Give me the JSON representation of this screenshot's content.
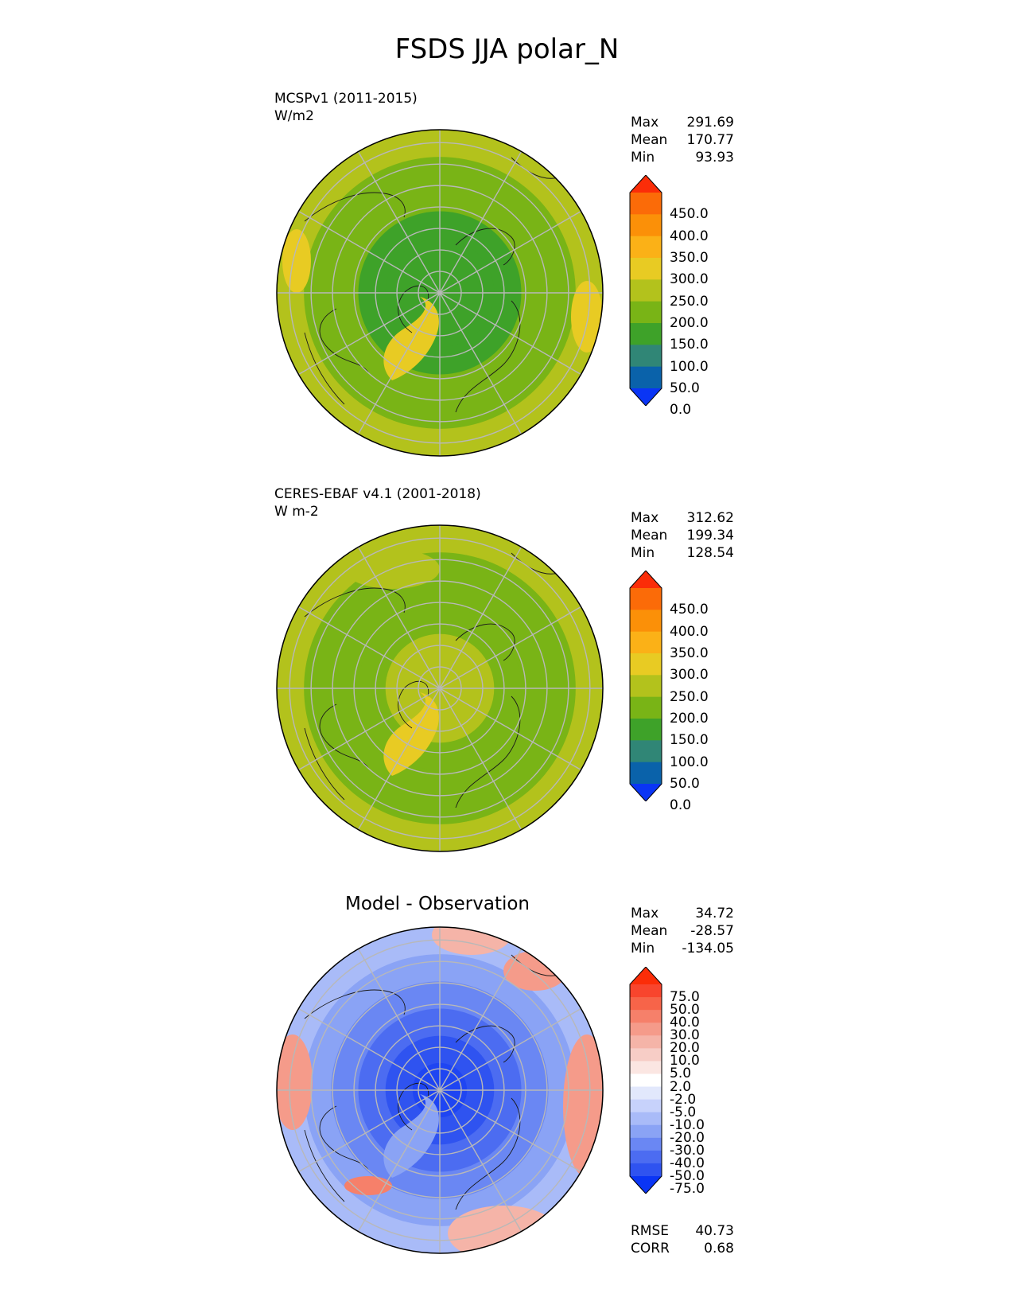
{
  "figure": {
    "title": "FSDS JJA polar_N"
  },
  "panels": [
    {
      "id": "model",
      "title_line1": "MCSPv1 (2011-2015)",
      "title_line2": "W/m2",
      "heading": "",
      "stats": {
        "max_label": "Max",
        "max": "291.69",
        "mean_label": "Mean",
        "mean": "170.77",
        "min_label": "Min",
        "min": "93.93"
      },
      "colorbar": {
        "labels": [
          "450.0",
          "400.0",
          "350.0",
          "300.0",
          "250.0",
          "200.0",
          "150.0",
          "100.0",
          "50.0",
          "0.0"
        ],
        "colors": [
          "#fb2d08",
          "#fb6b08",
          "#fb9008",
          "#fbb117",
          "#e8cb23",
          "#b3c21c",
          "#79b416",
          "#3ea229",
          "#308676",
          "#0a62aa",
          "#0a35f5"
        ]
      },
      "map": {
        "type": "north-polar-stereographic",
        "field": "FSDS",
        "pole_value_band": "100-150",
        "ring_levels": [
          "#3ea229",
          "#3ea229",
          "#3ea229",
          "#79b416",
          "#79b416",
          "#b3c21c"
        ]
      }
    },
    {
      "id": "obs",
      "title_line1": "CERES-EBAF v4.1 (2001-2018)",
      "title_line2": "W m-2",
      "heading": "",
      "stats": {
        "max_label": "Max",
        "max": "312.62",
        "mean_label": "Mean",
        "mean": "199.34",
        "min_label": "Min",
        "min": "128.54"
      },
      "colorbar": {
        "labels": [
          "450.0",
          "400.0",
          "350.0",
          "300.0",
          "250.0",
          "200.0",
          "150.0",
          "100.0",
          "50.0",
          "0.0"
        ],
        "colors": [
          "#fb2d08",
          "#fb6b08",
          "#fb9008",
          "#fbb117",
          "#e8cb23",
          "#b3c21c",
          "#79b416",
          "#3ea229",
          "#308676",
          "#0a62aa",
          "#0a35f5"
        ]
      },
      "map": {
        "type": "north-polar-stereographic",
        "field": "FSDS",
        "pole_value_band": "200-250",
        "ring_levels": [
          "#b3c21c",
          "#b3c21c",
          "#79b416",
          "#79b416",
          "#79b416",
          "#b3c21c"
        ]
      }
    },
    {
      "id": "diff",
      "title_line1": "",
      "title_line2": "",
      "heading": "Model - Observation",
      "stats": {
        "max_label": "Max",
        "max": "34.72",
        "mean_label": "Mean",
        "mean": "-28.57",
        "min_label": "Min",
        "min": "-134.05"
      },
      "colorbar": {
        "labels": [
          "75.0",
          "50.0",
          "40.0",
          "30.0",
          "20.0",
          "10.0",
          "5.0",
          "2.0",
          "-2.0",
          "-5.0",
          "-10.0",
          "-20.0",
          "-30.0",
          "-40.0",
          "-50.0",
          "-75.0"
        ],
        "colors": [
          "#fb2d08",
          "#f8452d",
          "#f76449",
          "#f6806a",
          "#f59b8a",
          "#f5b4a8",
          "#f7cdc6",
          "#fbe6e2",
          "#ffffff",
          "#e2e8fc",
          "#c7d2fb",
          "#a9bbf8",
          "#8aa3f5",
          "#6a87f3",
          "#4c6cf1",
          "#2f53f0",
          "#0a35f5"
        ]
      },
      "map": {
        "type": "north-polar-stereographic",
        "field": "FSDS difference",
        "pole_value_band": "-75 to -50",
        "ring_levels": [
          "#1f45f2",
          "#2f53f0",
          "#4c6cf1",
          "#6a87f3",
          "#8aa3f5",
          "#a9bbf8"
        ]
      },
      "footer": {
        "rmse_label": "RMSE",
        "rmse": "40.73",
        "corr_label": "CORR",
        "corr": "0.68"
      }
    }
  ]
}
